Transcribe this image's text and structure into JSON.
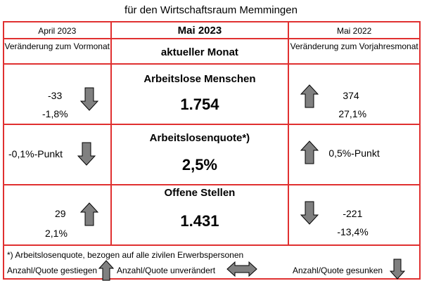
{
  "title": "für den Wirtschaftsraum Memmingen",
  "header": {
    "left_month": "April 2023",
    "center_month": "Mai 2023",
    "right_month": "Mai 2022",
    "left_sub": "Veränderung zum Vormonat",
    "center_sub": "aktueller Monat",
    "right_sub": "Veränderung zum Vorjahresmonat"
  },
  "rows": [
    {
      "heading": "Arbeitslose Menschen",
      "value": "1.754",
      "left": {
        "abs": "-33",
        "pct": "-1,8%",
        "direction": "down"
      },
      "right": {
        "abs": "374",
        "pct": "27,1%",
        "direction": "up"
      }
    },
    {
      "heading": "Arbeitslosenquote*)",
      "value": "2,5%",
      "left": {
        "abs": "-0,1%-Punkt",
        "direction": "down"
      },
      "right": {
        "abs": "0,5%-Punkt",
        "direction": "up"
      }
    },
    {
      "heading": "Offene Stellen",
      "value": "1.431",
      "left": {
        "abs": "29",
        "pct": "2,1%",
        "direction": "up"
      },
      "right": {
        "abs": "-221",
        "pct": "-13,4%",
        "direction": "down"
      }
    }
  ],
  "footnote": "*) Arbeitslosenquote, bezogen auf alle zivilen Erwerbspersonen",
  "legend": {
    "up": "Anzahl/Quote gestiegen",
    "same": "Anzahl/Quote unverändert",
    "down": "Anzahl/Quote gesunken"
  },
  "colors": {
    "border": "#e03030",
    "arrow_fill": "#808080",
    "arrow_stroke": "#000000"
  }
}
